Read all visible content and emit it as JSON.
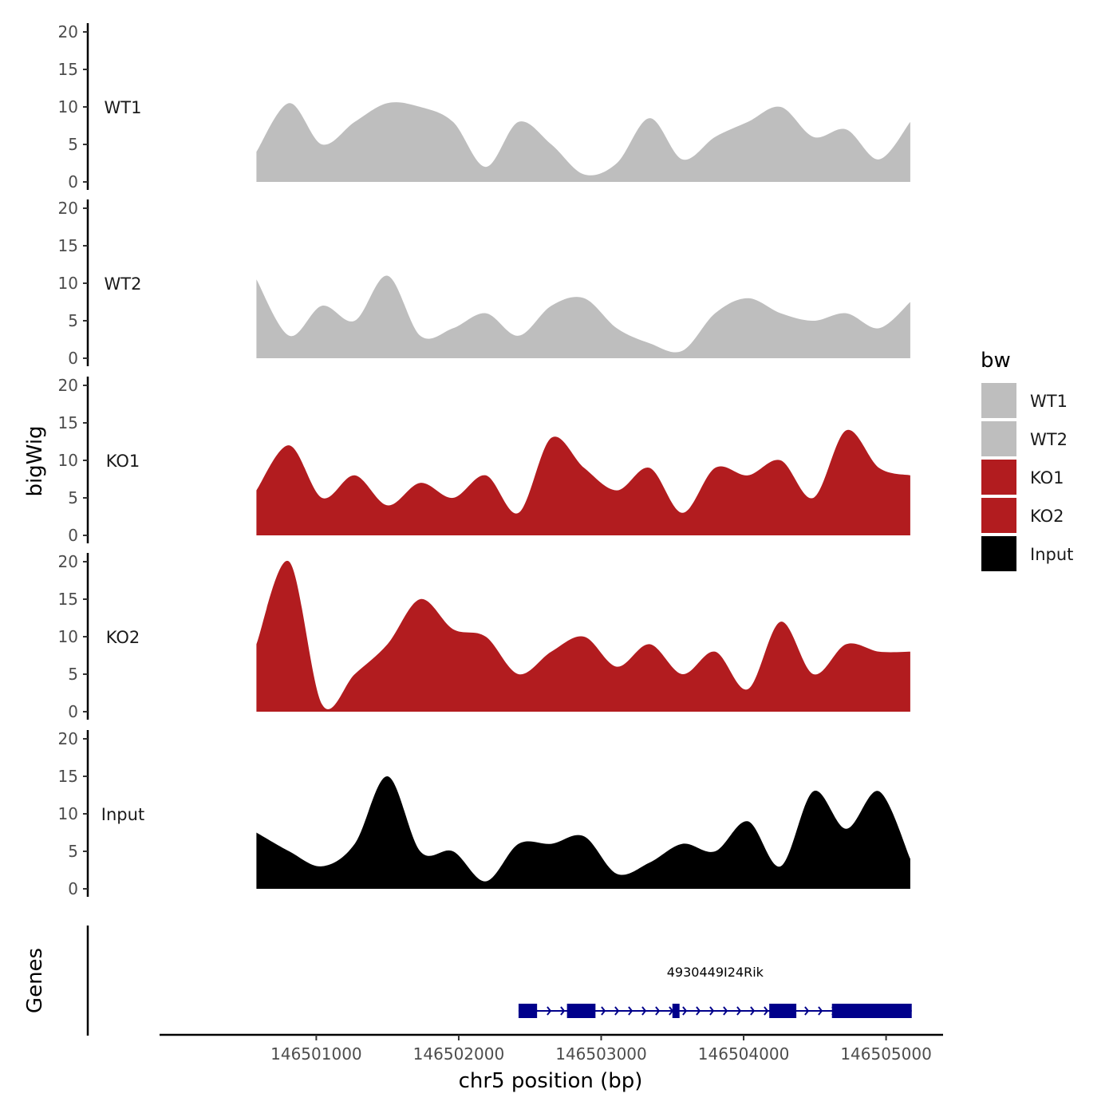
{
  "chart_data": {
    "type": "area",
    "title": "",
    "ylabel": "bigWig",
    "xlabel": "chr5 position (bp)",
    "xlim": [
      146499900,
      146505400
    ],
    "ylim": [
      0,
      20
    ],
    "yticks": [
      0,
      5,
      10,
      15,
      20
    ],
    "xticks": [
      146501000,
      146502000,
      146503000,
      146504000,
      146505000
    ],
    "x": [
      146500580,
      146500810,
      146501040,
      146501270,
      146501500,
      146501730,
      146501960,
      146502190,
      146502420,
      146502650,
      146502880,
      146503110,
      146503340,
      146503570,
      146503800,
      146504030,
      146504260,
      146504490,
      146504720,
      146504950,
      146505170
    ],
    "series": [
      {
        "name": "WT1",
        "color": "#bebebe",
        "values": [
          4,
          10.5,
          5,
          8,
          10.5,
          10,
          8,
          2,
          8,
          5,
          1,
          2.5,
          8.5,
          3,
          6,
          8,
          10,
          6,
          7,
          3,
          8
        ]
      },
      {
        "name": "WT2",
        "color": "#bebebe",
        "values": [
          10.5,
          3,
          7,
          5,
          11,
          3,
          4,
          6,
          3,
          7,
          8,
          4,
          2,
          1,
          6,
          8,
          6,
          5,
          6,
          4,
          7.5
        ]
      },
      {
        "name": "KO1",
        "color": "#b21c1f",
        "values": [
          6,
          12,
          5,
          8,
          4,
          7,
          5,
          8,
          3,
          13,
          9,
          6,
          9,
          3,
          9,
          8,
          10,
          5,
          14,
          9,
          8
        ]
      },
      {
        "name": "KO2",
        "color": "#b21c1f",
        "values": [
          9,
          20,
          1,
          5,
          9,
          15,
          11,
          10,
          5,
          8,
          10,
          6,
          9,
          5,
          8,
          3,
          12,
          5,
          9,
          8,
          8
        ]
      },
      {
        "name": "Input",
        "color": "#000000",
        "values": [
          7.5,
          5,
          3,
          6,
          15,
          5,
          5,
          1,
          6,
          6,
          7,
          2,
          3.5,
          6,
          5,
          9,
          3,
          13,
          8,
          13,
          4
        ]
      }
    ],
    "legend": {
      "title": "bw",
      "position": "right",
      "entries": [
        {
          "label": "WT1",
          "color": "#bebebe"
        },
        {
          "label": "WT2",
          "color": "#bebebe"
        },
        {
          "label": "KO1",
          "color": "#b21c1f"
        },
        {
          "label": "KO2",
          "color": "#b21c1f"
        },
        {
          "label": "Input",
          "color": "#000000"
        }
      ]
    },
    "genes_track": {
      "label": "Genes",
      "gene_name": "4930449I24Rik",
      "strand": "+",
      "color": "#00008b",
      "start": 146502420,
      "end": 146505180,
      "exons": [
        [
          146502420,
          146502550
        ],
        [
          146502760,
          146502960
        ],
        [
          146503500,
          146503550
        ],
        [
          146504180,
          146504370
        ],
        [
          146504620,
          146505180
        ]
      ]
    }
  }
}
